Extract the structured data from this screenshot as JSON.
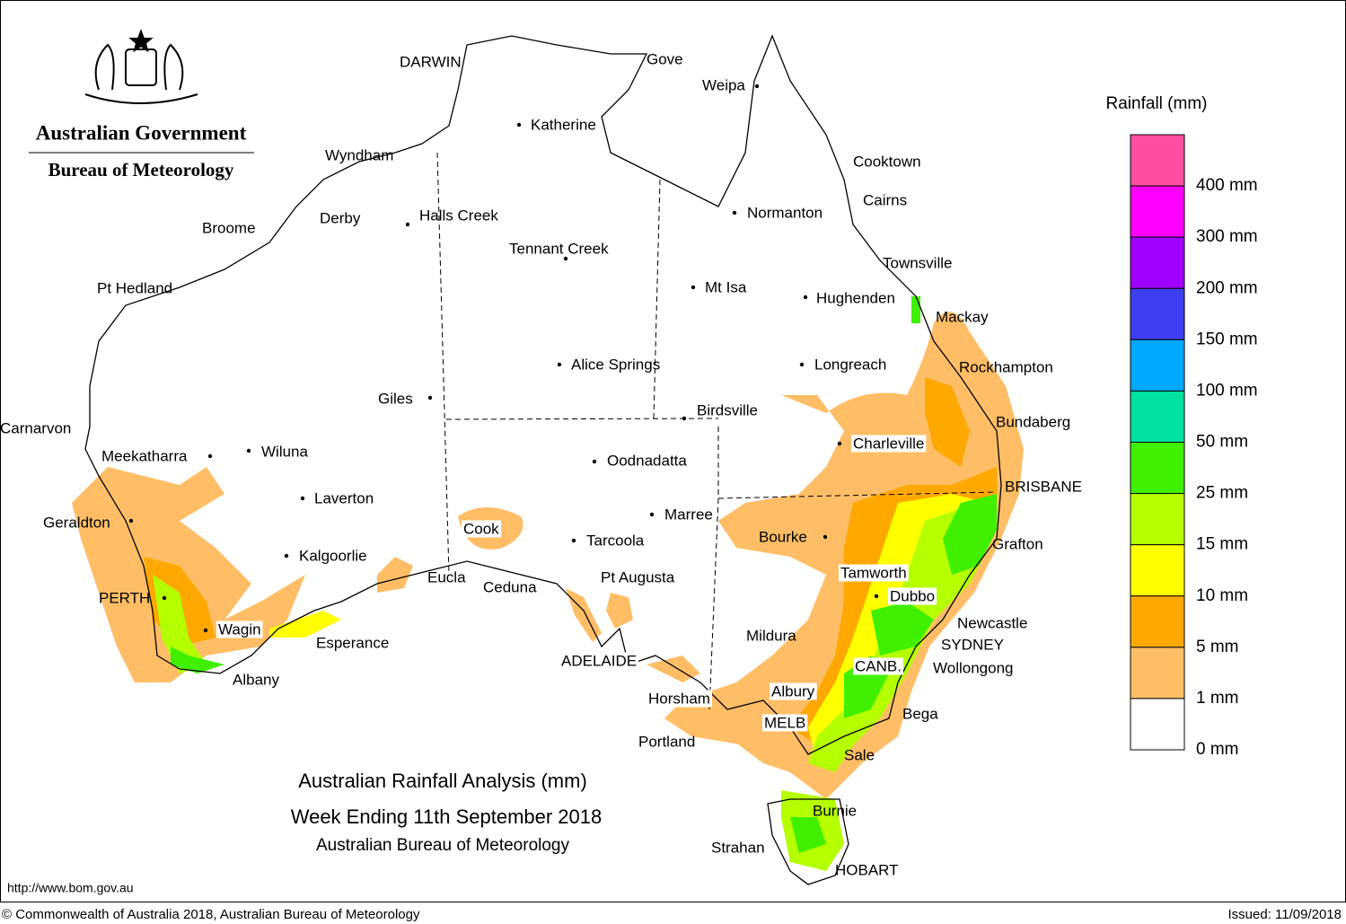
{
  "header": {
    "government": "Australian Government",
    "bureau": "Bureau of Meteorology"
  },
  "legend": {
    "title": "Rainfall (mm)",
    "labels": [
      "400 mm",
      "300 mm",
      "200 mm",
      "150 mm",
      "100 mm",
      "50 mm",
      "25 mm",
      "15 mm",
      "10 mm",
      "5 mm",
      "1 mm",
      "0 mm"
    ],
    "colors": [
      "#ff4fa0",
      "#ff00ff",
      "#a000ff",
      "#3f3ff0",
      "#00a8ff",
      "#00e0a0",
      "#40f000",
      "#b4ff00",
      "#ffff00",
      "#ffa800",
      "#ffbe66",
      "#ffffff"
    ]
  },
  "places": [
    "DARWIN",
    "Gove",
    "Weipa",
    "Katherine",
    "Wyndham",
    "Derby",
    "Halls Creek",
    "Broome",
    "Tennant Creek",
    "Normanton",
    "Cooktown",
    "Cairns",
    "Townsville",
    "Pt Hedland",
    "Mt Isa",
    "Hughenden",
    "Mackay",
    "Alice Springs",
    "Longreach",
    "Rockhampton",
    "Giles",
    "Birdsville",
    "Bundaberg",
    "Carnarvon",
    "Charleville",
    "Meekatharra",
    "Wiluna",
    "Oodnadatta",
    "BRISBANE",
    "Laverton",
    "Marree",
    "Cook",
    "Geraldton",
    "Bourke",
    "Tarcoola",
    "Grafton",
    "Kalgoorlie",
    "Tamworth",
    "Pt Augusta",
    "Eucla",
    "Ceduna",
    "PERTH",
    "Dubbo",
    "Newcastle",
    "Wagin",
    "Mildura",
    "Esperance",
    "SYDNEY",
    "ADELAIDE",
    "CANB.",
    "Wollongong",
    "Albany",
    "Albury",
    "Horsham",
    "Bega",
    "MELB",
    "Portland",
    "Sale",
    "Burnie",
    "Strahan",
    "HOBART"
  ],
  "title": {
    "line1": "Australian Rainfall Analysis (mm)",
    "line2": "Week Ending 11th September 2018",
    "line3": "Australian Bureau of Meteorology"
  },
  "footer": {
    "url": "http://www.bom.gov.au",
    "copyright": "© Commonwealth of Australia 2018, Australian Bureau of Meteorology",
    "issued": "Issued: 11/09/2018"
  }
}
